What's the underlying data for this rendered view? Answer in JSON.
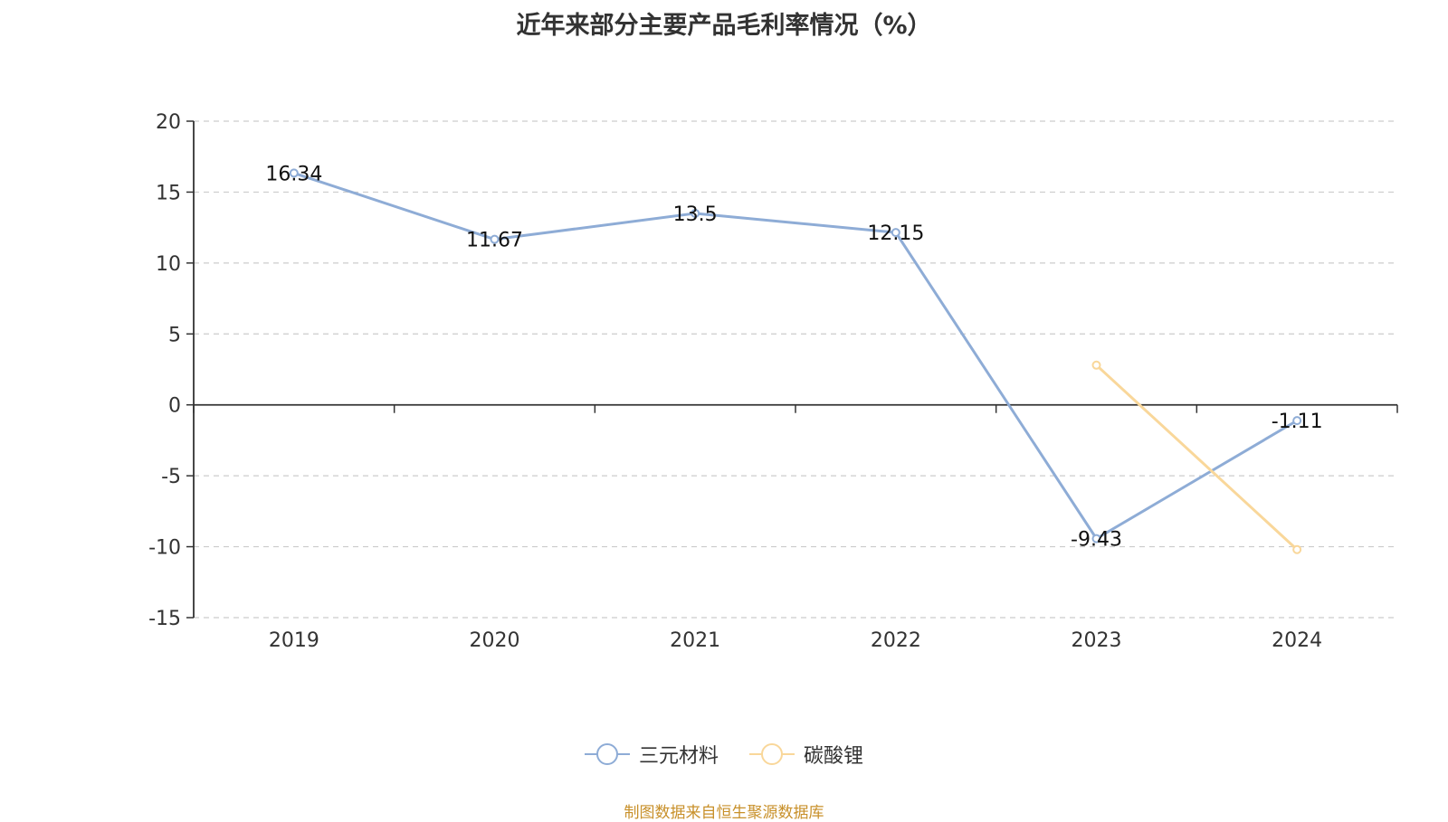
{
  "title": "近年来部分主要产品毛利率情况（%）",
  "source": "制图数据来自恒生聚源数据库",
  "colors": {
    "series1": "#8eacd6",
    "series2": "#f9d79a",
    "axis": "#333333",
    "grid": "#cccccc"
  },
  "chart_data": {
    "type": "line",
    "categories": [
      "2019",
      "2020",
      "2021",
      "2022",
      "2023",
      "2024"
    ],
    "series": [
      {
        "name": "三元材料",
        "values": [
          16.34,
          11.67,
          13.5,
          12.15,
          -9.43,
          -1.11
        ],
        "labels": [
          "16.34",
          "11.67",
          "13.5",
          "12.15",
          "-9.43",
          "-1.11"
        ]
      },
      {
        "name": "碳酸锂",
        "values": [
          null,
          null,
          null,
          null,
          2.8,
          -10.2
        ],
        "labels": []
      }
    ],
    "yticks": [
      "20",
      "15",
      "10",
      "5",
      "0",
      "-5",
      "-10",
      "-15"
    ],
    "ylim": [
      -15,
      20
    ],
    "grid": true,
    "legend": "bottom"
  }
}
